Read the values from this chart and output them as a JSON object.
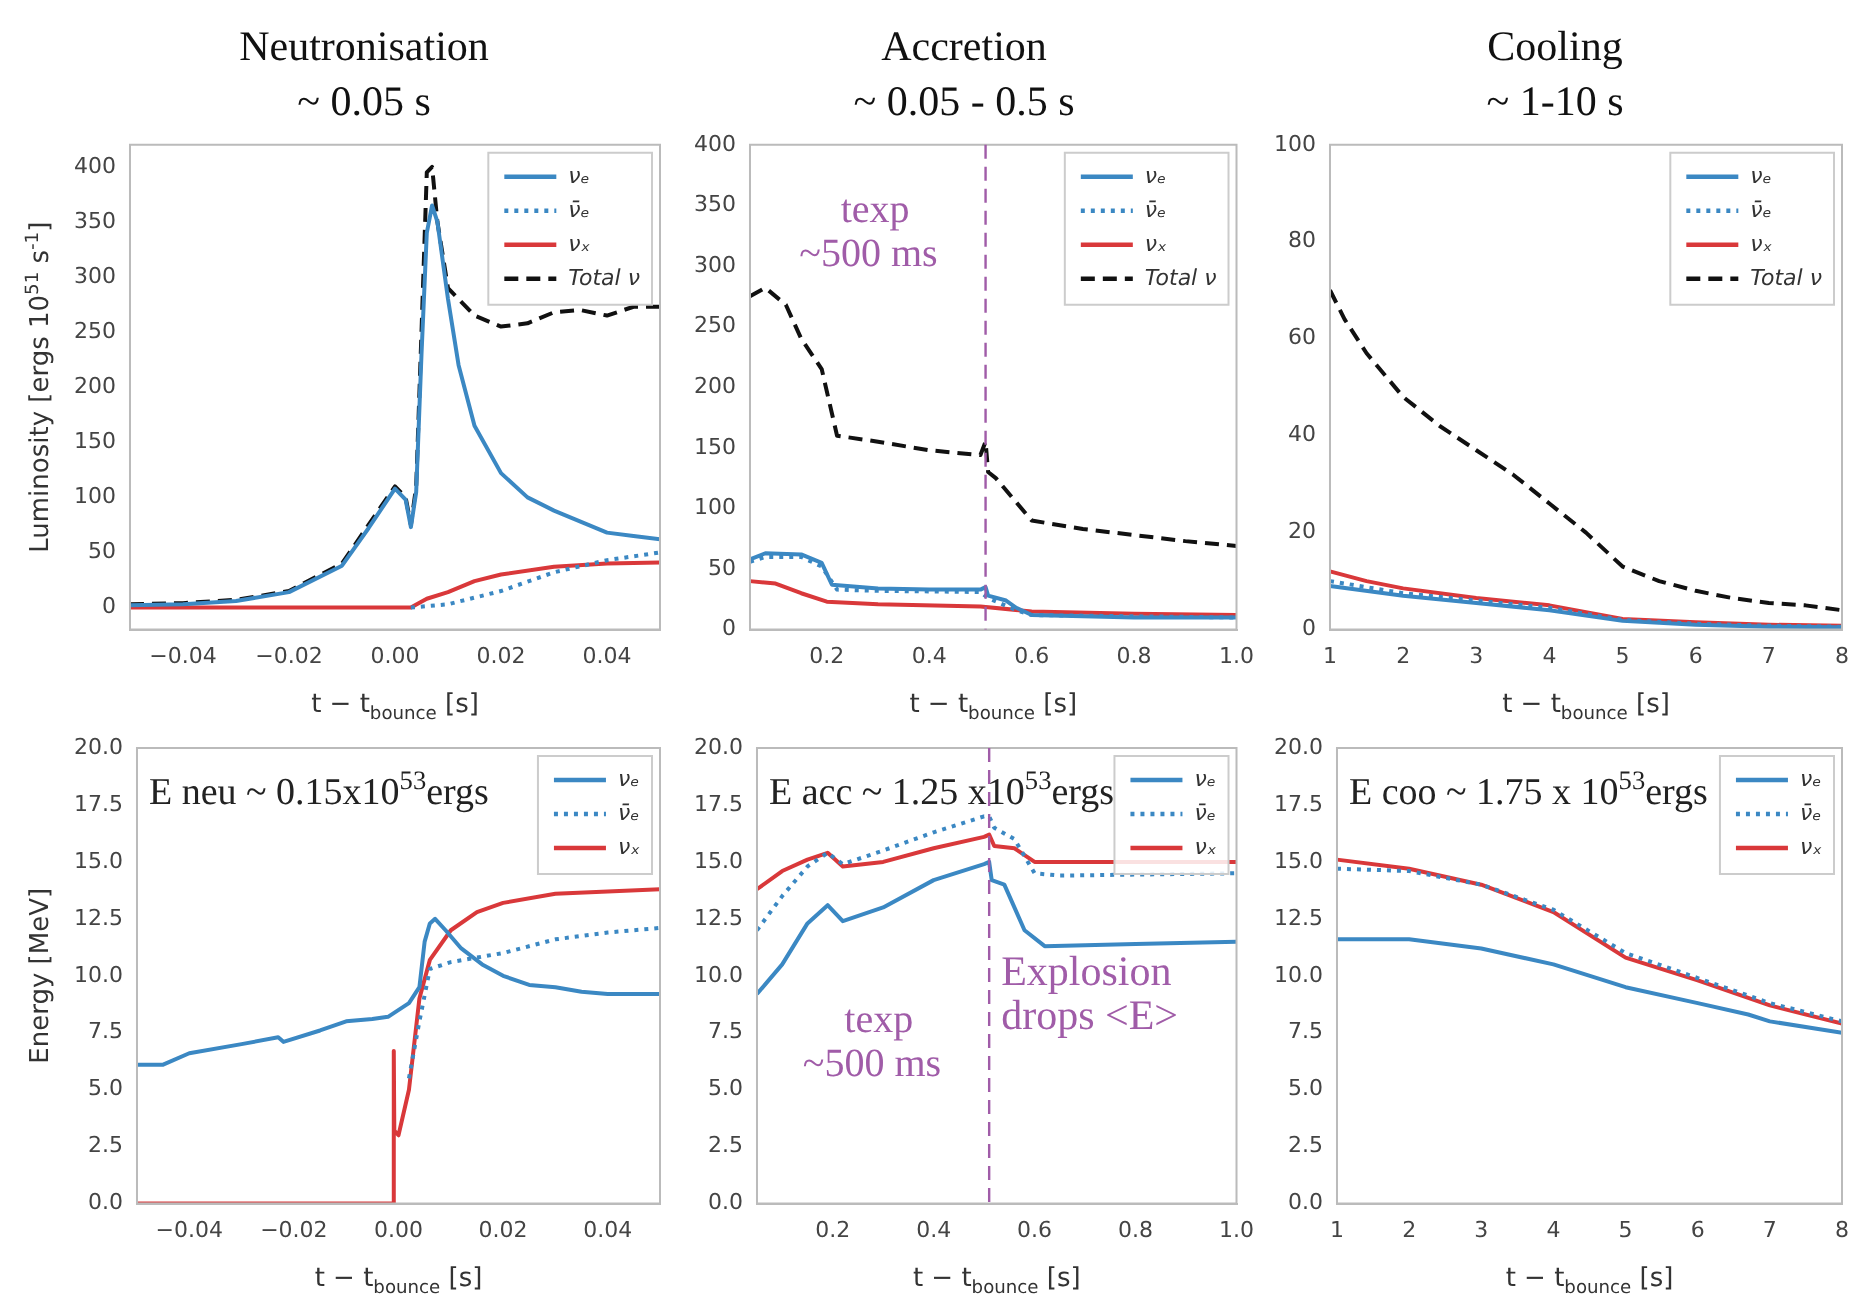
{
  "chart_data": [
    {
      "type": "line",
      "title": "Neutronisation",
      "subtitle": "~ 0.05 s",
      "ylabel": "Luminosity [ergs 10$^{51}$ s$^{-1}$]",
      "xlabel": "t − t$_{bounce}$ [s]",
      "marker": "none",
      "legend": "top right",
      "xlim": [
        -0.05,
        0.05
      ],
      "xticks": [
        {
          "value": -0.04,
          "label": "−0.04"
        },
        {
          "value": -0.02,
          "label": "−0.02"
        },
        {
          "value": 0,
          "label": "0.00"
        },
        {
          "value": 0.02,
          "label": "0.02"
        },
        {
          "value": 0.04,
          "label": "0.04"
        }
      ],
      "ylim": [
        -20,
        420
      ],
      "yticks": [
        0,
        50,
        100,
        150,
        200,
        250,
        300,
        350,
        400
      ],
      "series": [
        {
          "name": "νₑ",
          "color": "#3b88c3",
          "line_style": "solid",
          "x": [
            -0.05,
            -0.04,
            -0.03,
            -0.02,
            -0.01,
            -0.005,
            0,
            0.002,
            0.003,
            0.004,
            0.005,
            0.006,
            0.007,
            0.008,
            0.01,
            0.012,
            0.015,
            0.02,
            0.025,
            0.03,
            0.035,
            0.04,
            0.045,
            0.05
          ],
          "values": [
            2,
            3,
            6,
            14,
            38,
            72,
            108,
            98,
            73,
            105,
            230,
            340,
            365,
            350,
            280,
            220,
            165,
            122,
            100,
            88,
            78,
            68,
            65,
            62
          ]
        },
        {
          "name": "ν̄ₑ",
          "color": "#3b88c3",
          "line_style": "dotted",
          "x": [
            0.003,
            0.01,
            0.02,
            0.03,
            0.04,
            0.05
          ],
          "values": [
            0,
            3,
            15,
            32,
            43,
            50
          ]
        },
        {
          "name": "νₓ",
          "color": "#d9383a",
          "line_style": "solid",
          "x": [
            -0.05,
            0.003,
            0.006,
            0.01,
            0.015,
            0.02,
            0.03,
            0.04,
            0.05
          ],
          "values": [
            0,
            0,
            8,
            14,
            24,
            30,
            37,
            40,
            41
          ]
        },
        {
          "name": "Total ν",
          "color": "#111111",
          "line_style": "dashed",
          "x": [
            -0.05,
            -0.04,
            -0.03,
            -0.02,
            -0.01,
            -0.005,
            0,
            0.002,
            0.003,
            0.004,
            0.005,
            0.006,
            0.007,
            0.008,
            0.01,
            0.015,
            0.02,
            0.025,
            0.03,
            0.035,
            0.04,
            0.045,
            0.05
          ],
          "values": [
            3,
            4,
            7,
            15,
            40,
            75,
            110,
            100,
            75,
            110,
            250,
            395,
            400,
            350,
            290,
            265,
            255,
            258,
            268,
            270,
            265,
            273,
            273
          ]
        }
      ]
    },
    {
      "type": "line",
      "title": "Accretion",
      "subtitle": "~ 0.05 - 0.5 s",
      "xlabel": "t − t$_{bounce}$ [s]",
      "marker": "none",
      "legend": "top right",
      "xlim": [
        0.05,
        1.0
      ],
      "xticks": [
        0.2,
        0.4,
        0.6,
        0.8,
        {
          "value": 1.0,
          "label": "1.0"
        }
      ],
      "ylim": [
        0,
        400
      ],
      "yticks": [
        0,
        50,
        100,
        150,
        200,
        250,
        300,
        350,
        400
      ],
      "ref_lines": [
        {
          "axis": "x",
          "value": 0.51,
          "color": "#a05ca8",
          "line_style": "dashed",
          "label": "texp\n~500 ms"
        }
      ],
      "series": [
        {
          "name": "νₑ",
          "color": "#3b88c3",
          "line_style": "solid",
          "x": [
            0.05,
            0.08,
            0.15,
            0.19,
            0.21,
            0.3,
            0.4,
            0.5,
            0.51,
            0.515,
            0.55,
            0.57,
            0.6,
            0.8,
            1.0
          ],
          "values": [
            58,
            63,
            62,
            55,
            37,
            34,
            33,
            33,
            35,
            28,
            24,
            18,
            12,
            10,
            10
          ]
        },
        {
          "name": "ν̄ₑ",
          "color": "#3b88c3",
          "line_style": "dotted",
          "x": [
            0.05,
            0.08,
            0.15,
            0.19,
            0.22,
            0.3,
            0.5,
            0.515,
            0.57,
            0.6,
            1.0
          ],
          "values": [
            56,
            60,
            60,
            52,
            33,
            32,
            31,
            26,
            16,
            12,
            10
          ]
        },
        {
          "name": "νₓ",
          "color": "#d9383a",
          "line_style": "solid",
          "x": [
            0.05,
            0.1,
            0.15,
            0.2,
            0.3,
            0.5,
            0.6,
            0.8,
            1.0
          ],
          "values": [
            40,
            38,
            30,
            23,
            21,
            19,
            15,
            13,
            12
          ]
        },
        {
          "name": "Total ν",
          "color": "#111111",
          "line_style": "dashed",
          "x": [
            0.05,
            0.08,
            0.12,
            0.15,
            0.19,
            0.22,
            0.3,
            0.4,
            0.5,
            0.51,
            0.515,
            0.53,
            0.6,
            0.7,
            0.8,
            0.9,
            1.0
          ],
          "values": [
            275,
            282,
            268,
            240,
            215,
            160,
            155,
            148,
            144,
            155,
            130,
            125,
            90,
            83,
            78,
            73,
            69
          ]
        }
      ]
    },
    {
      "type": "line",
      "title": "Cooling",
      "subtitle": "~ 1-10 s",
      "xlabel": "t − t$_{bounce}$ [s]",
      "marker": "none",
      "legend": "top right",
      "xlim": [
        1,
        8
      ],
      "xticks": [
        1,
        2,
        3,
        4,
        5,
        6,
        7,
        8
      ],
      "ylim": [
        0,
        100
      ],
      "yticks": [
        0,
        20,
        40,
        60,
        80,
        100
      ],
      "series": [
        {
          "name": "νₑ",
          "color": "#3b88c3",
          "line_style": "solid",
          "x": [
            1,
            2,
            3,
            4,
            5,
            6,
            7,
            8
          ],
          "values": [
            9,
            7,
            5.5,
            4,
            1.8,
            1,
            0.6,
            0.5
          ]
        },
        {
          "name": "ν̄ₑ",
          "color": "#3b88c3",
          "line_style": "dotted",
          "x": [
            1,
            2,
            3,
            4,
            5,
            6,
            7,
            8
          ],
          "values": [
            10,
            7.5,
            6,
            4.5,
            2,
            1.2,
            0.8,
            0.6
          ]
        },
        {
          "name": "νₓ",
          "color": "#d9383a",
          "line_style": "solid",
          "x": [
            1,
            1.5,
            2,
            3,
            4,
            5,
            6,
            7,
            8
          ],
          "values": [
            12,
            10,
            8.5,
            6.5,
            5,
            2.2,
            1.5,
            1,
            0.8
          ]
        },
        {
          "name": "Total ν",
          "color": "#111111",
          "line_style": "dashed",
          "x": [
            1,
            1.2,
            1.5,
            2,
            2.5,
            3,
            3.5,
            4,
            4.5,
            5,
            5.5,
            6,
            6.5,
            7,
            7.5,
            8
          ],
          "values": [
            70,
            64,
            57,
            48,
            42,
            37,
            32,
            26,
            20,
            13,
            10,
            8,
            6.5,
            5.5,
            5,
            4
          ]
        }
      ]
    },
    {
      "type": "line",
      "ylabel": "Energy [MeV]",
      "xlabel": "t − t$_{bounce}$ [s]",
      "marker": "none",
      "legend": "top right",
      "xlim": [
        -0.05,
        0.05
      ],
      "xticks": [
        {
          "value": -0.04,
          "label": "−0.04"
        },
        {
          "value": -0.02,
          "label": "−0.02"
        },
        {
          "value": 0,
          "label": "0.00"
        },
        {
          "value": 0.02,
          "label": "0.02"
        },
        {
          "value": 0.04,
          "label": "0.04"
        }
      ],
      "ylim": [
        0,
        20
      ],
      "yticks": [
        {
          "value": 0,
          "label": "0.0"
        },
        2.5,
        {
          "value": 5,
          "label": "5.0"
        },
        7.5,
        {
          "value": 10,
          "label": "10.0"
        },
        12.5,
        {
          "value": 15,
          "label": "15.0"
        },
        17.5,
        {
          "value": 20,
          "label": "20.0"
        }
      ],
      "annotations": [
        "E neu ~ 0.15x10$^{53}$ergs"
      ],
      "series": [
        {
          "name": "νₑ",
          "color": "#3b88c3",
          "line_style": "solid",
          "x": [
            -0.05,
            -0.045,
            -0.04,
            -0.03,
            -0.023,
            -0.022,
            -0.015,
            -0.01,
            -0.005,
            -0.002,
            0.002,
            0.004,
            0.005,
            0.006,
            0.007,
            0.009,
            0.012,
            0.016,
            0.02,
            0.025,
            0.03,
            0.035,
            0.04,
            0.05
          ],
          "values": [
            6.1,
            6.1,
            6.6,
            7.0,
            7.3,
            7.1,
            7.6,
            8.0,
            8.1,
            8.2,
            8.8,
            9.5,
            11.5,
            12.3,
            12.5,
            12.0,
            11.2,
            10.5,
            10.0,
            9.6,
            9.5,
            9.3,
            9.2,
            9.2
          ]
        },
        {
          "name": "ν̄ₑ",
          "color": "#3b88c3",
          "line_style": "dotted",
          "x": [
            0.002,
            0.004,
            0.006,
            0.01,
            0.02,
            0.03,
            0.04,
            0.05
          ],
          "values": [
            5.5,
            8,
            10.3,
            10.6,
            11.0,
            11.6,
            11.9,
            12.1
          ]
        },
        {
          "name": "νₓ",
          "color": "#d9383a",
          "line_style": "solid",
          "x": [
            -0.05,
            -0.001,
            -0.0009,
            -0.0008,
            0,
            0.002,
            0.004,
            0.006,
            0.01,
            0.015,
            0.02,
            0.03,
            0.04,
            0.05
          ],
          "values": [
            0,
            0,
            6.7,
            3.2,
            3.0,
            5,
            9,
            10.7,
            12,
            12.8,
            13.2,
            13.6,
            13.7,
            13.8
          ]
        }
      ]
    },
    {
      "type": "line",
      "xlabel": "t − t$_{bounce}$ [s]",
      "marker": "none",
      "legend": "top right",
      "xlim": [
        0.05,
        1.0
      ],
      "xticks": [
        0.2,
        0.4,
        0.6,
        0.8,
        {
          "value": 1.0,
          "label": "1.0"
        }
      ],
      "ylim": [
        0,
        20
      ],
      "yticks": [
        {
          "value": 0,
          "label": "0.0"
        },
        2.5,
        {
          "value": 5,
          "label": "5.0"
        },
        7.5,
        {
          "value": 10,
          "label": "10.0"
        },
        12.5,
        {
          "value": 15,
          "label": "15.0"
        },
        17.5,
        {
          "value": 20,
          "label": "20.0"
        }
      ],
      "ref_lines": [
        {
          "axis": "x",
          "value": 0.51,
          "color": "#a05ca8",
          "line_style": "dashed",
          "label": "texp\n~500 ms"
        }
      ],
      "annotations": [
        "E acc ~ 1.25 x10$^{53}$ergs",
        "Explosion\ndrops <E>"
      ],
      "series": [
        {
          "name": "νₑ",
          "color": "#3b88c3",
          "line_style": "solid",
          "x": [
            0.05,
            0.1,
            0.15,
            0.19,
            0.22,
            0.3,
            0.4,
            0.5,
            0.51,
            0.515,
            0.54,
            0.58,
            0.62,
            0.8,
            1.0
          ],
          "values": [
            9.2,
            10.5,
            12.3,
            13.1,
            12.4,
            13.0,
            14.2,
            14.9,
            15.0,
            14.2,
            14.0,
            12.0,
            11.3,
            11.4,
            11.5
          ]
        },
        {
          "name": "ν̄ₑ",
          "color": "#3b88c3",
          "line_style": "dotted",
          "x": [
            0.05,
            0.1,
            0.15,
            0.19,
            0.22,
            0.3,
            0.4,
            0.5,
            0.51,
            0.52,
            0.56,
            0.6,
            0.65,
            1.0
          ],
          "values": [
            12.0,
            13.5,
            14.8,
            15.4,
            14.9,
            15.5,
            16.3,
            17.0,
            17.0,
            16.5,
            16.0,
            14.5,
            14.4,
            14.5
          ]
        },
        {
          "name": "νₓ",
          "color": "#d9383a",
          "line_style": "solid",
          "x": [
            0.05,
            0.1,
            0.15,
            0.19,
            0.22,
            0.3,
            0.4,
            0.5,
            0.51,
            0.52,
            0.56,
            0.6,
            1.0
          ],
          "values": [
            13.8,
            14.6,
            15.1,
            15.4,
            14.8,
            15.0,
            15.6,
            16.1,
            16.2,
            15.7,
            15.6,
            15.0,
            15.0
          ]
        }
      ]
    },
    {
      "type": "line",
      "xlabel": "t − t$_{bounce}$ [s]",
      "marker": "none",
      "legend": "top right",
      "xlim": [
        1,
        8
      ],
      "xticks": [
        1,
        2,
        3,
        4,
        5,
        6,
        7,
        8
      ],
      "ylim": [
        0,
        20
      ],
      "yticks": [
        {
          "value": 0,
          "label": "0.0"
        },
        2.5,
        {
          "value": 5,
          "label": "5.0"
        },
        7.5,
        {
          "value": 10,
          "label": "10.0"
        },
        12.5,
        {
          "value": 15,
          "label": "15.0"
        },
        17.5,
        {
          "value": 20,
          "label": "20.0"
        }
      ],
      "annotations": [
        "E coo ~ 1.75 x 10$^{53}$ergs"
      ],
      "series": [
        {
          "name": "νₑ",
          "color": "#3b88c3",
          "line_style": "solid",
          "x": [
            1,
            2,
            3,
            4,
            5,
            6,
            6.7,
            7,
            8
          ],
          "values": [
            11.6,
            11.6,
            11.2,
            10.5,
            9.5,
            8.8,
            8.3,
            8.0,
            7.5
          ]
        },
        {
          "name": "ν̄ₑ",
          "color": "#3b88c3",
          "line_style": "dotted",
          "x": [
            1,
            2,
            3,
            4,
            5,
            6,
            7,
            8
          ],
          "values": [
            14.7,
            14.6,
            14.0,
            12.9,
            11.0,
            9.9,
            8.8,
            8.0
          ]
        },
        {
          "name": "νₓ",
          "color": "#d9383a",
          "line_style": "solid",
          "x": [
            1,
            2,
            3,
            4,
            5,
            6,
            7,
            8
          ],
          "values": [
            15.1,
            14.7,
            14.0,
            12.8,
            10.8,
            9.8,
            8.7,
            7.9
          ]
        }
      ]
    }
  ]
}
